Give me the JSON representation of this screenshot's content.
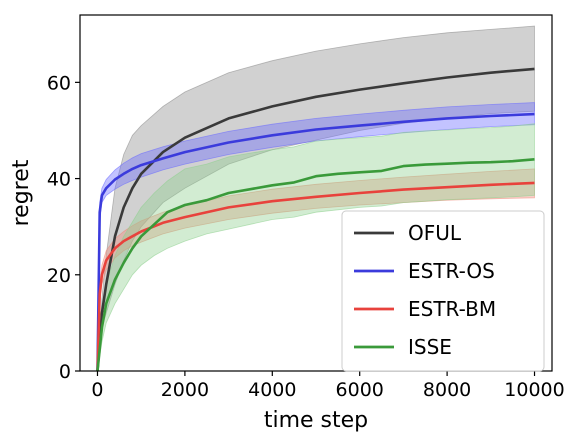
{
  "chart_data": {
    "type": "line",
    "xlabel": "time step",
    "ylabel": "regret",
    "xlim": [
      -400,
      10400
    ],
    "ylim": [
      0,
      74
    ],
    "xticks": [
      0,
      2000,
      4000,
      6000,
      8000,
      10000
    ],
    "yticks": [
      0,
      20,
      40,
      60
    ],
    "grid": false,
    "legend_position": "lower-right",
    "series": [
      {
        "name": "OFUL",
        "color": "#3a3a3a",
        "band_color": "#8c8c8c",
        "x": [
          0,
          100,
          200,
          400,
          600,
          800,
          1000,
          1500,
          2000,
          3000,
          4000,
          5000,
          6000,
          7000,
          8000,
          9000,
          10000
        ],
        "y": [
          0,
          12,
          18,
          28,
          34,
          38,
          41,
          45.5,
          48.5,
          52.5,
          55,
          57,
          58.5,
          59.8,
          61,
          62,
          62.8
        ],
        "lower": [
          0,
          9,
          12,
          18,
          23,
          27,
          30,
          35,
          38,
          43,
          46,
          48,
          50,
          51.5,
          52.5,
          53.5,
          54
        ],
        "upper": [
          0,
          15,
          24,
          38,
          45,
          49,
          51,
          55,
          58,
          62,
          64.5,
          66.5,
          68,
          69.3,
          70.3,
          71,
          71.7
        ]
      },
      {
        "name": "ESTR-OS",
        "color": "#3b3bdc",
        "band_color": "#6a6aff",
        "x": [
          0,
          50,
          100,
          200,
          400,
          600,
          800,
          1000,
          1500,
          2000,
          3000,
          4000,
          5000,
          6000,
          7000,
          8000,
          9000,
          10000
        ],
        "y": [
          0,
          33,
          36.5,
          38,
          39.8,
          41,
          42,
          42.8,
          44.2,
          45.5,
          47.5,
          49,
          50.2,
          51,
          51.8,
          52.5,
          53,
          53.4
        ],
        "lower": [
          0,
          31,
          35,
          36.5,
          37.8,
          38.8,
          39.6,
          40.3,
          41.8,
          43,
          45,
          46.5,
          47.8,
          48.7,
          49.5,
          50.2,
          50.8,
          51.2
        ],
        "upper": [
          0,
          35,
          38,
          39.8,
          41.8,
          43.2,
          44.3,
          45.2,
          46.6,
          47.8,
          49.8,
          51.3,
          52.5,
          53.4,
          54.2,
          54.9,
          55.4,
          55.8
        ]
      },
      {
        "name": "ESTR-BM",
        "color": "#e8423c",
        "band_color": "#f08a7a",
        "x": [
          0,
          50,
          100,
          200,
          400,
          600,
          800,
          1000,
          1500,
          2000,
          3000,
          4000,
          5000,
          6000,
          7000,
          8000,
          9000,
          10000
        ],
        "y": [
          0,
          16,
          20,
          23,
          25.5,
          27,
          28,
          29,
          30.8,
          32,
          34,
          35.3,
          36.2,
          37,
          37.7,
          38.2,
          38.7,
          39.1
        ],
        "lower": [
          0,
          14,
          18,
          21,
          23.5,
          25,
          26,
          26.8,
          28.5,
          29.7,
          31.5,
          32.8,
          33.8,
          34.5,
          35,
          35.5,
          35.8,
          36
        ],
        "upper": [
          0,
          18,
          22,
          25,
          27.5,
          29,
          30.2,
          31.2,
          33,
          34.3,
          36.4,
          37.8,
          38.8,
          39.6,
          40.3,
          40.9,
          41.5,
          42
        ]
      },
      {
        "name": "ISSE",
        "color": "#3a9a3a",
        "band_color": "#8fd08f",
        "x": [
          0,
          100,
          200,
          400,
          600,
          800,
          1000,
          1300,
          1600,
          2000,
          2500,
          3000,
          3500,
          4000,
          4500,
          5000,
          5500,
          6000,
          6500,
          7000,
          7500,
          8000,
          8500,
          9000,
          9500,
          10000
        ],
        "y": [
          0,
          9,
          14,
          19,
          22.5,
          25.5,
          28,
          30.5,
          33,
          34.5,
          35.5,
          37,
          37.8,
          38.6,
          39.2,
          40.5,
          41,
          41.3,
          41.6,
          42.6,
          42.9,
          43.1,
          43.3,
          43.4,
          43.6,
          44
        ],
        "lower": [
          0,
          6,
          10,
          14,
          17,
          20,
          22,
          24,
          25.5,
          27,
          28.5,
          29.5,
          30.5,
          31.5,
          32,
          33,
          33.5,
          34,
          34.3,
          35,
          35.3,
          35.6,
          35.8,
          36,
          36.2,
          36.5
        ],
        "upper": [
          0,
          12,
          18,
          24,
          28,
          31,
          34,
          37,
          39.5,
          42,
          43,
          44.5,
          45.3,
          46,
          46.6,
          47.8,
          48.2,
          48.5,
          48.8,
          49.6,
          49.9,
          50.1,
          50.4,
          50.6,
          50.9,
          51.4
        ]
      }
    ]
  }
}
